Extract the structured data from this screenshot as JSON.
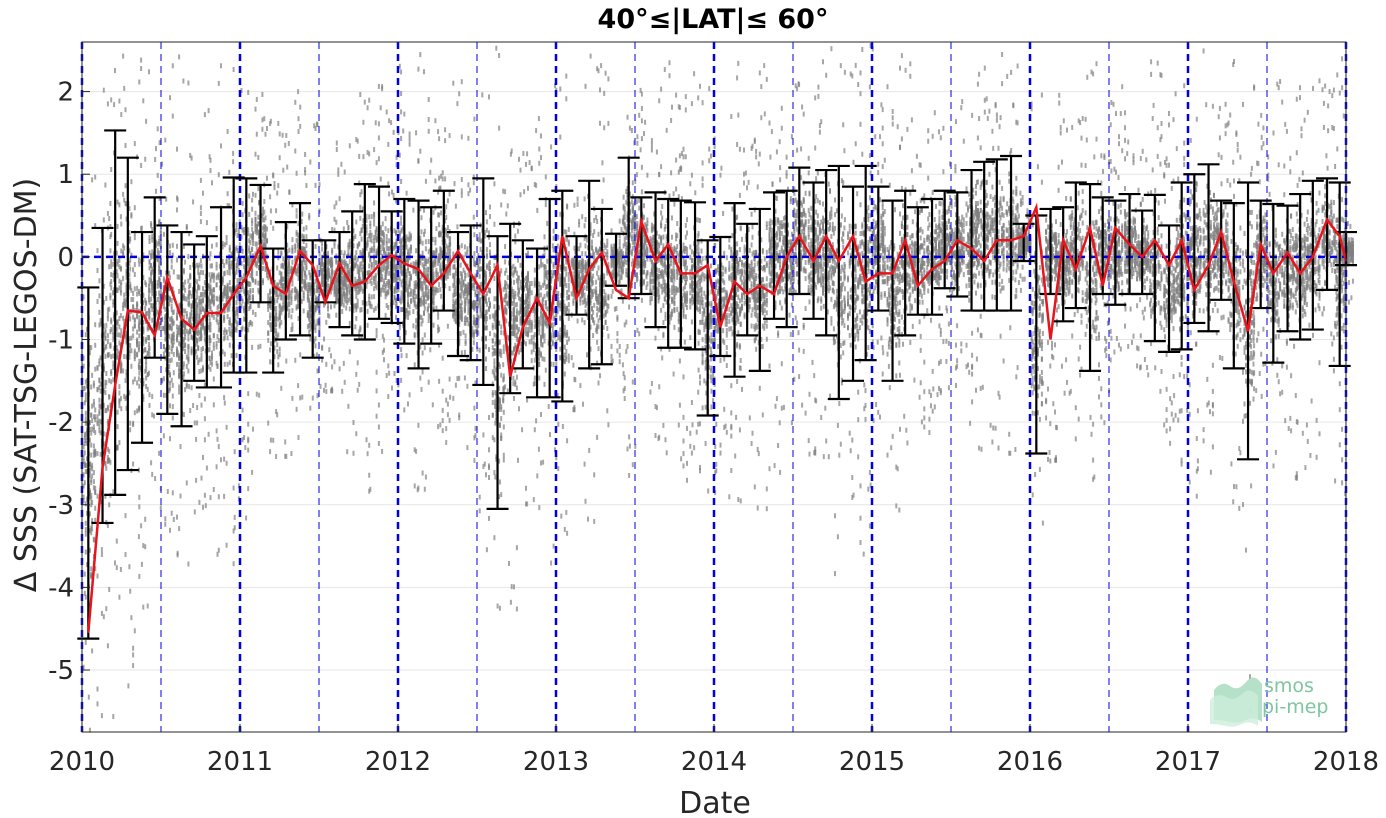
{
  "chart_data": {
    "type": "scatter",
    "title": "40°≤|LAT|≤ 60°",
    "xlabel": "Date",
    "ylabel": "Δ SSS (SAT-TSG-LEGOS-DM)",
    "xlim": [
      2010,
      2018
    ],
    "ylim": [
      -5.75,
      2.6
    ],
    "x_ticks": [
      "2010",
      "2011",
      "2012",
      "2013",
      "2014",
      "2015",
      "2016",
      "2017",
      "2018"
    ],
    "y_ticks": [
      "2",
      "1",
      "0",
      "-1",
      "-2",
      "-3",
      "-4",
      "-5"
    ],
    "zero_line": 0,
    "year_lines": [
      2010,
      2011,
      2012,
      2013,
      2014,
      2015,
      2016,
      2017,
      2018
    ],
    "half_year_lines": [
      2010.5,
      2011.5,
      2012.5,
      2013.5,
      2014.5,
      2015.5,
      2016.5,
      2017.5
    ],
    "grid": "horizontal",
    "series": [
      {
        "name": "monthly-mean",
        "color": "#e8141c",
        "x": [
          2010.04,
          2010.13,
          2010.21,
          2010.29,
          2010.38,
          2010.46,
          2010.54,
          2010.63,
          2010.71,
          2010.79,
          2010.88,
          2010.96,
          2011.04,
          2011.13,
          2011.21,
          2011.29,
          2011.38,
          2011.46,
          2011.54,
          2011.63,
          2011.71,
          2011.79,
          2011.88,
          2011.96,
          2012.04,
          2012.13,
          2012.21,
          2012.29,
          2012.38,
          2012.46,
          2012.54,
          2012.63,
          2012.71,
          2012.79,
          2012.88,
          2012.96,
          2013.04,
          2013.13,
          2013.21,
          2013.29,
          2013.38,
          2013.46,
          2013.54,
          2013.63,
          2013.71,
          2013.79,
          2013.88,
          2013.96,
          2014.04,
          2014.13,
          2014.21,
          2014.29,
          2014.38,
          2014.46,
          2014.54,
          2014.63,
          2014.71,
          2014.79,
          2014.88,
          2014.96,
          2015.04,
          2015.13,
          2015.21,
          2015.29,
          2015.38,
          2015.46,
          2015.54,
          2015.63,
          2015.71,
          2015.79,
          2015.88,
          2015.96,
          2016.04,
          2016.13,
          2016.21,
          2016.29,
          2016.38,
          2016.46,
          2016.54,
          2016.63,
          2016.71,
          2016.79,
          2016.88,
          2016.96,
          2017.04,
          2017.13,
          2017.21,
          2017.29,
          2017.38,
          2017.46,
          2017.54,
          2017.63,
          2017.71,
          2017.79,
          2017.88,
          2017.96,
          2018.0
        ],
        "mean": [
          -4.55,
          -2.55,
          -1.55,
          -0.65,
          -0.67,
          -0.95,
          -0.25,
          -0.75,
          -0.88,
          -0.68,
          -0.68,
          -0.45,
          -0.25,
          0.13,
          -0.35,
          -0.45,
          0.07,
          -0.1,
          -0.55,
          -0.08,
          -0.35,
          -0.3,
          -0.1,
          0.02,
          -0.08,
          -0.15,
          -0.35,
          -0.2,
          0.07,
          -0.2,
          -0.45,
          -0.1,
          -1.45,
          -0.85,
          -0.5,
          -0.8,
          0.25,
          -0.5,
          -0.15,
          0.05,
          -0.4,
          -0.5,
          0.43,
          -0.05,
          0.15,
          -0.2,
          -0.2,
          -0.1,
          -0.85,
          -0.3,
          -0.45,
          -0.35,
          -0.45,
          0.0,
          0.25,
          -0.05,
          0.25,
          -0.05,
          0.25,
          -0.3,
          -0.2,
          -0.2,
          0.2,
          -0.35,
          -0.15,
          -0.05,
          0.2,
          0.1,
          -0.05,
          0.2,
          0.2,
          0.25,
          0.6,
          -1.0,
          0.2,
          -0.15,
          0.35,
          -0.35,
          0.35,
          0.15,
          0.0,
          0.2,
          -0.1,
          0.2,
          -0.4,
          -0.1,
          0.3,
          -0.3,
          -0.9,
          0.15,
          -0.2,
          0.05,
          -0.2,
          0.0,
          0.45,
          0.25,
          -0.05
        ],
        "err_low": [
          -4.62,
          -3.22,
          -2.88,
          -2.58,
          -2.25,
          -1.22,
          -1.9,
          -2.05,
          -1.5,
          -1.58,
          -1.58,
          -1.4,
          -1.4,
          -0.55,
          -1.4,
          -1.0,
          -0.95,
          -1.22,
          -0.55,
          -0.85,
          -0.95,
          -1.0,
          -0.75,
          -0.8,
          -1.05,
          -1.35,
          -1.05,
          -0.65,
          -1.2,
          -1.25,
          -1.55,
          -3.05,
          -1.65,
          -1.35,
          -1.7,
          -1.7,
          -1.75,
          -0.7,
          -1.35,
          -1.3,
          -0.35,
          -0.5,
          -0.45,
          -0.85,
          -1.1,
          -1.1,
          -1.12,
          -1.92,
          -1.2,
          -1.45,
          -0.95,
          -1.38,
          -0.75,
          -0.85,
          -0.45,
          -0.75,
          -0.95,
          -1.72,
          -1.5,
          -1.25,
          -0.65,
          -1.5,
          -0.95,
          -0.7,
          -0.7,
          -0.38,
          -0.48,
          -0.65,
          -0.65,
          -0.65,
          -0.65,
          -0.05,
          -2.38,
          -0.45,
          -0.78,
          -0.62,
          -1.38,
          -0.45,
          -0.58,
          -0.45,
          -0.45,
          -1.02,
          -1.15,
          -1.12,
          -0.8,
          -0.9,
          -0.52,
          -1.35,
          -2.45,
          -0.62,
          -1.28,
          -0.9,
          -1.0,
          -0.88,
          -0.4,
          -1.32,
          -0.1
        ],
        "err_high": [
          -0.37,
          0.35,
          1.53,
          1.2,
          0.3,
          0.72,
          0.38,
          0.3,
          0.15,
          0.25,
          0.6,
          0.96,
          0.95,
          0.87,
          0.1,
          0.42,
          0.65,
          0.2,
          0.2,
          0.3,
          0.55,
          0.88,
          0.85,
          0.55,
          0.7,
          0.68,
          0.6,
          0.8,
          0.3,
          0.38,
          0.95,
          0.25,
          0.4,
          0.2,
          0.1,
          0.7,
          0.8,
          0.25,
          0.92,
          0.58,
          0.28,
          1.2,
          0.72,
          0.78,
          0.7,
          0.68,
          0.66,
          0.2,
          0.24,
          0.65,
          0.4,
          0.58,
          0.78,
          0.8,
          1.08,
          0.9,
          1.05,
          1.1,
          0.85,
          1.1,
          0.85,
          0.68,
          0.8,
          0.6,
          0.7,
          0.8,
          0.78,
          1.05,
          1.15,
          1.18,
          1.22,
          0.4,
          0.5,
          0.58,
          0.6,
          0.9,
          0.88,
          0.72,
          0.68,
          0.76,
          0.56,
          0.75,
          0.38,
          0.9,
          1.0,
          1.12,
          0.68,
          0.65,
          0.9,
          0.68,
          0.64,
          0.62,
          0.76,
          0.92,
          0.95,
          0.9,
          0.3
        ]
      }
    ],
    "scatter_color": "#808080",
    "errorbar_color": "#000000",
    "ref_line_color": "#0000e6"
  },
  "logo": {
    "line1": "smos",
    "line2": "pi-mep"
  }
}
